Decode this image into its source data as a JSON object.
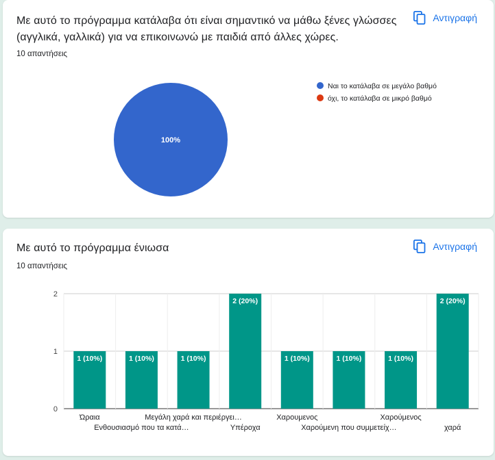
{
  "card1": {
    "title": "Με αυτό το πρόγραμμα κατάλαβα ότι είναι σημαντικό να μάθω ξένες γλώσσες (αγγλικά, γαλλικά) για να επικοινωνώ με παιδιά από άλλες χώρες.",
    "responses": "10 απαντήσεις",
    "copy_label": "Αντιγραφή",
    "chart_data": {
      "type": "pie",
      "slices": [
        {
          "label": "Ναι το κατάλαβα σε μεγάλο βαθμό",
          "value": 100,
          "display": "100%",
          "color": "#3366cc"
        },
        {
          "label": "όχι, το κατάλαβα σε μικρό βαθμό",
          "value": 0,
          "display": "",
          "color": "#dc3912"
        }
      ],
      "legend_position": "right"
    }
  },
  "card2": {
    "title": "Με αυτό το πρόγραμμα ένιωσα",
    "responses": "10 απαντήσεις",
    "copy_label": "Αντιγραφή",
    "chart_data": {
      "type": "bar",
      "categories": [
        "Ώραια",
        "Ενθουσιασμό που τα κατά…",
        "Μεγάλη χαρά και περιέργει…",
        "Υπέροχα",
        "Χαρουμενος",
        "Χαρούμενη που συμμετείχ…",
        "Χαρούμενος",
        "χαρά"
      ],
      "values": [
        1,
        1,
        1,
        2,
        1,
        1,
        1,
        2
      ],
      "labels": [
        "1 (10%)",
        "1 (10%)",
        "1 (10%)",
        "2 (20%)",
        "1 (10%)",
        "1 (10%)",
        "1 (10%)",
        "2 (20%)"
      ],
      "yticks": [
        "0",
        "1",
        "2"
      ],
      "ylim": [
        0,
        2
      ],
      "color": "#009688",
      "grid": true
    }
  }
}
